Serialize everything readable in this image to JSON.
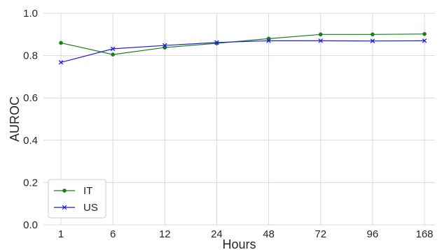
{
  "chart_data": {
    "type": "line",
    "xlabel": "Hours",
    "ylabel": "AUROC",
    "categories": [
      "1",
      "6",
      "12",
      "24",
      "48",
      "72",
      "96",
      "168"
    ],
    "ylim": [
      0.0,
      1.0
    ],
    "yticks": [
      "0.0",
      "0.2",
      "0.4",
      "0.6",
      "0.8",
      "1.0"
    ],
    "ytick_values": [
      0.0,
      0.2,
      0.4,
      0.6,
      0.8,
      1.0
    ],
    "grid": true,
    "legend_position": "bottom-left",
    "series": [
      {
        "name": "IT",
        "color": "#1a7f1a",
        "marker": "circle",
        "values": [
          0.86,
          0.805,
          0.838,
          0.858,
          0.88,
          0.9,
          0.9,
          0.902
        ]
      },
      {
        "name": "US",
        "color": "#1f1fd6",
        "marker": "x",
        "values": [
          0.768,
          0.832,
          0.848,
          0.862,
          0.87,
          0.87,
          0.869,
          0.87
        ]
      }
    ]
  }
}
